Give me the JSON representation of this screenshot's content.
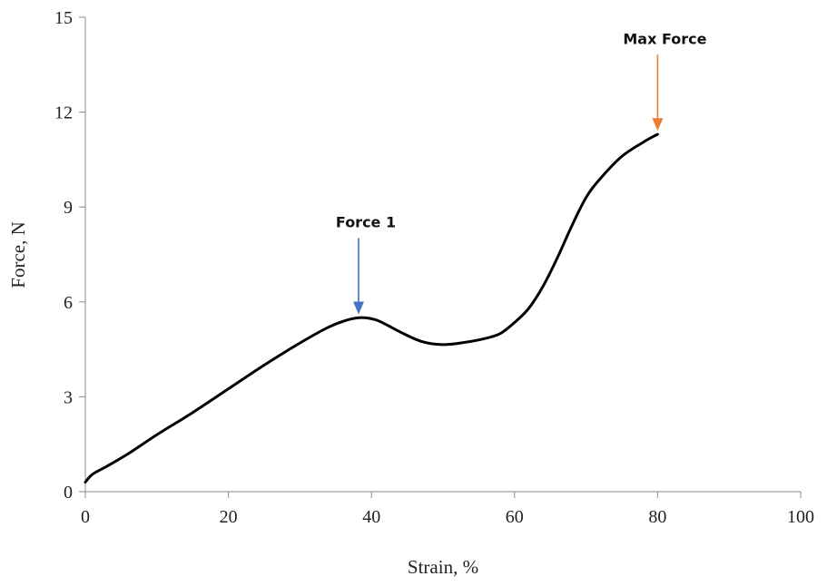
{
  "chart_data": {
    "type": "line",
    "xlabel": "Strain, %",
    "ylabel": "Force, N",
    "xlim": [
      0,
      100
    ],
    "ylim": [
      0,
      15
    ],
    "xticks": [
      0,
      20,
      40,
      60,
      80,
      100
    ],
    "yticks": [
      0,
      3,
      6,
      9,
      12,
      15
    ],
    "grid": false,
    "series": [
      {
        "color": "#000000",
        "x": [
          0,
          1,
          3,
          6,
          10,
          15,
          20,
          25,
          30,
          34,
          37,
          39,
          41,
          44,
          47,
          50,
          53,
          56,
          58,
          60,
          62,
          64,
          66,
          68,
          70,
          72,
          75,
          78,
          80
        ],
        "y": [
          0.3,
          0.55,
          0.8,
          1.2,
          1.8,
          2.5,
          3.25,
          4.0,
          4.7,
          5.2,
          5.45,
          5.5,
          5.4,
          5.05,
          4.75,
          4.65,
          4.72,
          4.85,
          5.0,
          5.35,
          5.8,
          6.5,
          7.4,
          8.4,
          9.3,
          9.9,
          10.6,
          11.05,
          11.3
        ]
      }
    ],
    "annotations": [
      {
        "text": "Force 1",
        "x": 38.2,
        "y": 5.55,
        "color": "#4472C4"
      },
      {
        "text": "Max Force",
        "x": 80.0,
        "y": 11.35,
        "color": "#ED7D31"
      }
    ]
  }
}
